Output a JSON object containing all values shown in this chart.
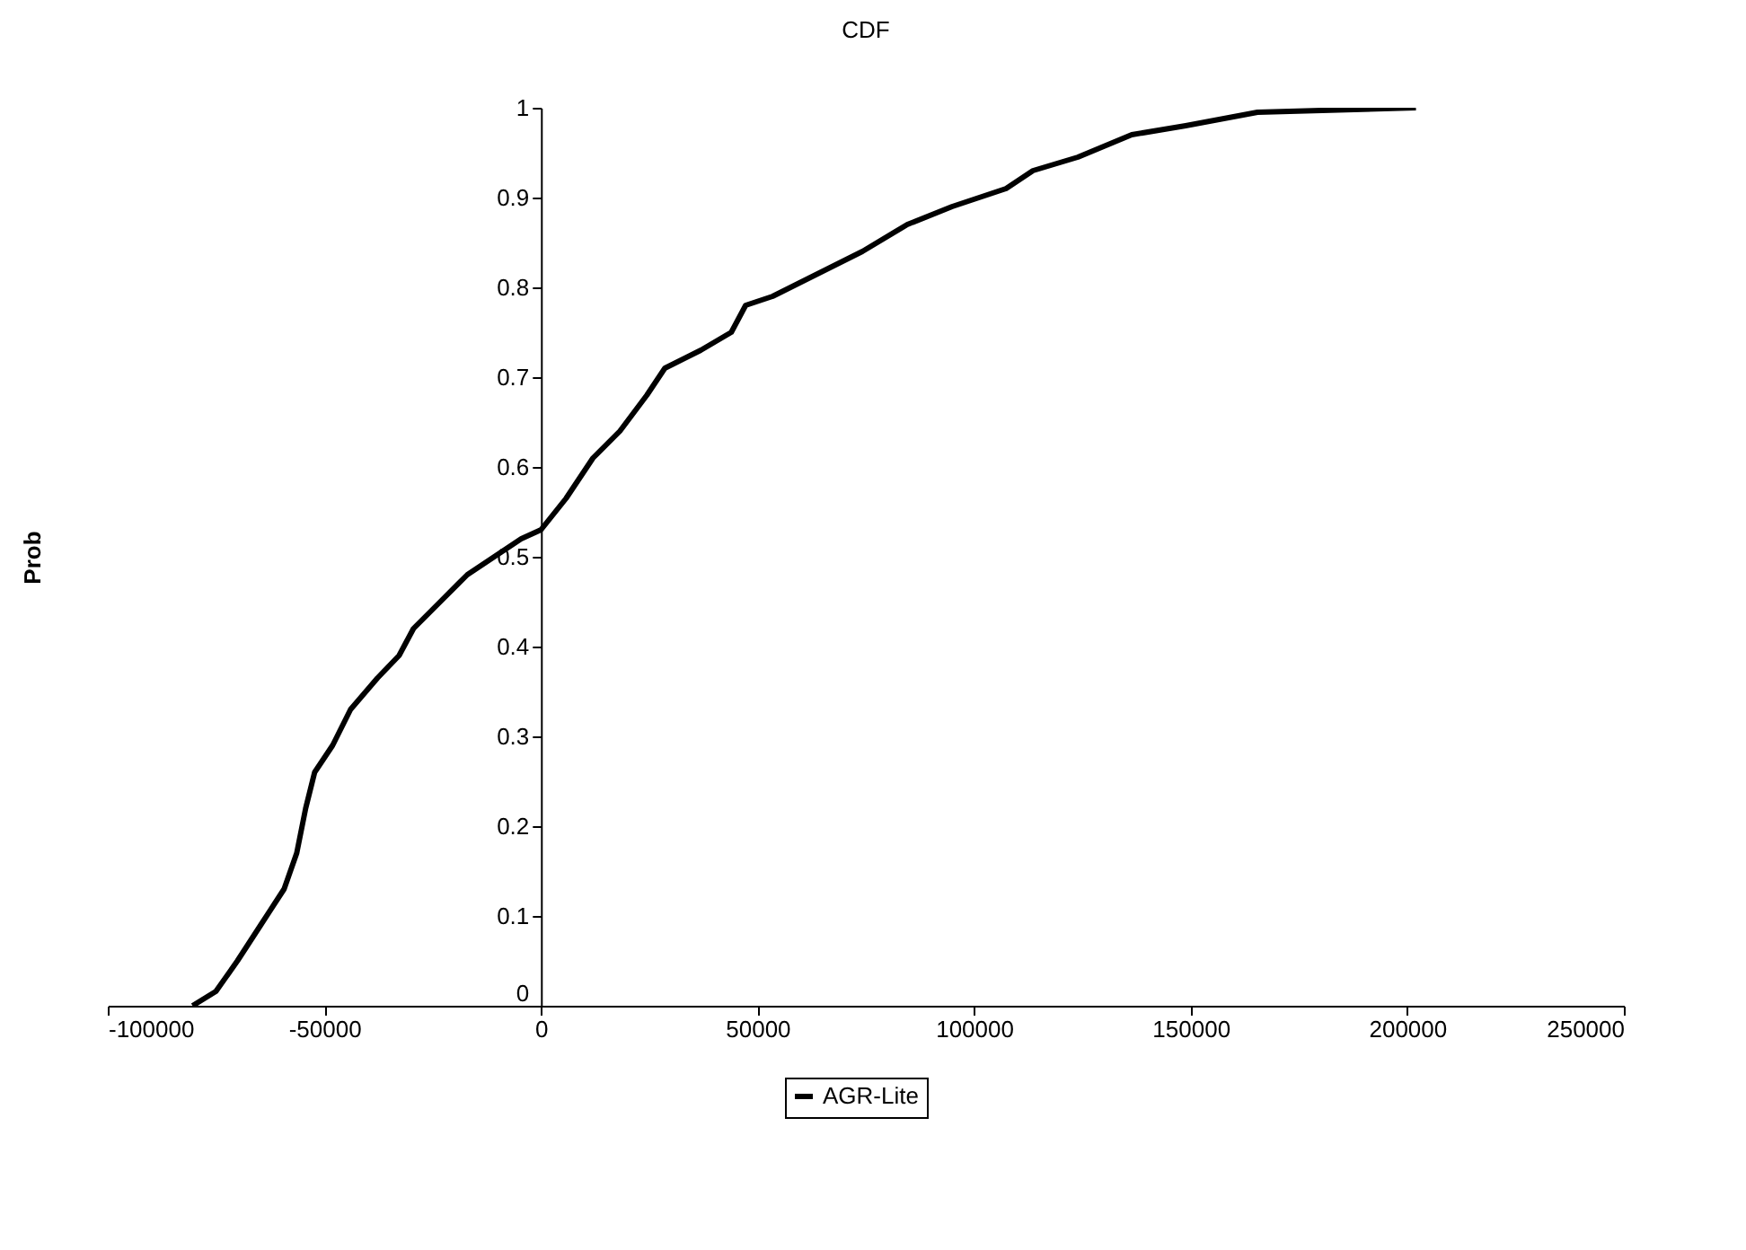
{
  "chart_data": {
    "type": "line",
    "title": "CDF",
    "ylabel": "Prob",
    "x": [
      -80430,
      -75040,
      -70070,
      -64680,
      -59290,
      -56380,
      -54310,
      -52240,
      -48090,
      -43950,
      -37730,
      -32750,
      -29430,
      -23220,
      -17000,
      -10780,
      -4560,
      0,
      5800,
      12020,
      18240,
      24460,
      28610,
      36900,
      43950,
      47260,
      53480,
      61770,
      74210,
      84580,
      94940,
      107380,
      113600,
      123960,
      136400,
      148840,
      165420,
      202000
    ],
    "series": [
      {
        "name": "AGR-Lite",
        "color": "#000000",
        "values": [
          0,
          0.016,
          0.05,
          0.09,
          0.13,
          0.17,
          0.22,
          0.26,
          0.29,
          0.33,
          0.365,
          0.39,
          0.42,
          0.45,
          0.48,
          0.5,
          0.52,
          0.53,
          0.565,
          0.61,
          0.64,
          0.68,
          0.71,
          0.73,
          0.75,
          0.78,
          0.79,
          0.81,
          0.84,
          0.87,
          0.89,
          0.91,
          0.93,
          0.945,
          0.97,
          0.98,
          0.995,
          1
        ]
      }
    ],
    "xlim": [
      -100000,
      250000
    ],
    "xticks": [
      -100000,
      -50000,
      0,
      50000,
      100000,
      150000,
      200000,
      250000
    ],
    "ylim": [
      0,
      1
    ],
    "yticks": [
      0,
      0.1,
      0.2,
      0.3,
      0.4,
      0.5,
      0.6,
      0.7,
      0.8,
      0.9,
      1
    ],
    "grid": false,
    "legend": "bottom"
  }
}
